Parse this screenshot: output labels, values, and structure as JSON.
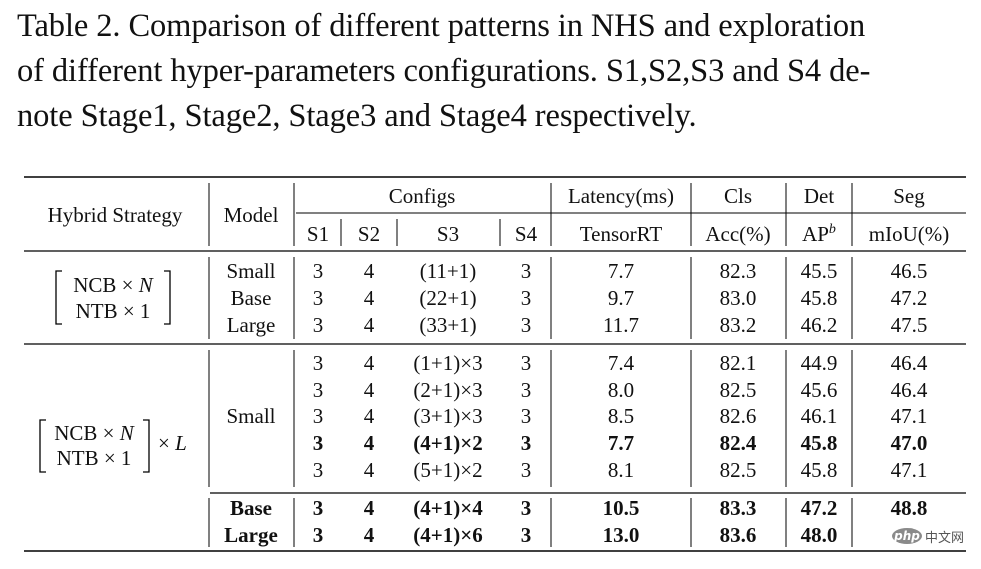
{
  "caption": {
    "lines": [
      "Table 2. Comparison of different patterns in NHS and exploration",
      "of different hyper-parameters configurations. S1,S2,S3 and S4 de-",
      "note Stage1, Stage2, Stage3 and Stage4 respectively."
    ]
  },
  "table": {
    "headers": {
      "hybrid_strategy": "Hybrid Strategy",
      "model": "Model",
      "configs": "Configs",
      "latency": "Latency(ms)",
      "cls": "Cls",
      "det": "Det",
      "seg": "Seg",
      "s1": "S1",
      "s2": "S2",
      "s3": "S3",
      "s4": "S4",
      "tensorrt": "TensorRT",
      "acc": "Acc(%)",
      "ap": "AP",
      "ap_sup": "b",
      "miou": "mIoU(%)"
    },
    "strategies": [
      {
        "line1": "NCB × ",
        "var1": "N",
        "line2": "NTB × 1",
        "suffix": ""
      },
      {
        "line1": "NCB × ",
        "var1": "N",
        "line2": "NTB × 1",
        "suffix_pre": "× ",
        "suffix_var": "L"
      }
    ],
    "group1": [
      {
        "model": "Small",
        "s1": "3",
        "s2": "4",
        "s3": "(11+1)",
        "s4": "3",
        "latency": "7.7",
        "acc": "82.3",
        "ap": "45.5",
        "miou": "46.5",
        "bold": false
      },
      {
        "model": "Base",
        "s1": "3",
        "s2": "4",
        "s3": "(22+1)",
        "s4": "3",
        "latency": "9.7",
        "acc": "83.0",
        "ap": "45.8",
        "miou": "47.2",
        "bold": false
      },
      {
        "model": "Large",
        "s1": "3",
        "s2": "4",
        "s3": "(33+1)",
        "s4": "3",
        "latency": "11.7",
        "acc": "83.2",
        "ap": "46.2",
        "miou": "47.5",
        "bold": false
      }
    ],
    "group2_model": "Small",
    "group2": [
      {
        "s1": "3",
        "s2": "4",
        "s3": "(1+1)×3",
        "s4": "3",
        "latency": "7.4",
        "acc": "82.1",
        "ap": "44.9",
        "miou": "46.4",
        "bold": false
      },
      {
        "s1": "3",
        "s2": "4",
        "s3": "(2+1)×3",
        "s4": "3",
        "latency": "8.0",
        "acc": "82.5",
        "ap": "45.6",
        "miou": "46.4",
        "bold": false
      },
      {
        "s1": "3",
        "s2": "4",
        "s3": "(3+1)×3",
        "s4": "3",
        "latency": "8.5",
        "acc": "82.6",
        "ap": "46.1",
        "miou": "47.1",
        "bold": false
      },
      {
        "s1": "3",
        "s2": "4",
        "s3": "(4+1)×2",
        "s4": "3",
        "latency": "7.7",
        "acc": "82.4",
        "ap": "45.8",
        "miou": "47.0",
        "bold": true
      },
      {
        "s1": "3",
        "s2": "4",
        "s3": "(5+1)×2",
        "s4": "3",
        "latency": "8.1",
        "acc": "82.5",
        "ap": "45.8",
        "miou": "47.1",
        "bold": false
      }
    ],
    "group3": [
      {
        "model": "Base",
        "s1": "3",
        "s2": "4",
        "s3": "(4+1)×4",
        "s4": "3",
        "latency": "10.5",
        "acc": "83.3",
        "ap": "47.2",
        "miou": "48.8",
        "bold": true
      },
      {
        "model": "Large",
        "s1": "3",
        "s2": "4",
        "s3": "(4+1)×6",
        "s4": "3",
        "latency": "13.0",
        "acc": "83.6",
        "ap": "48.0",
        "miou": "4",
        "bold": true
      }
    ]
  },
  "watermark": {
    "logo": "php",
    "text": "中文网"
  }
}
